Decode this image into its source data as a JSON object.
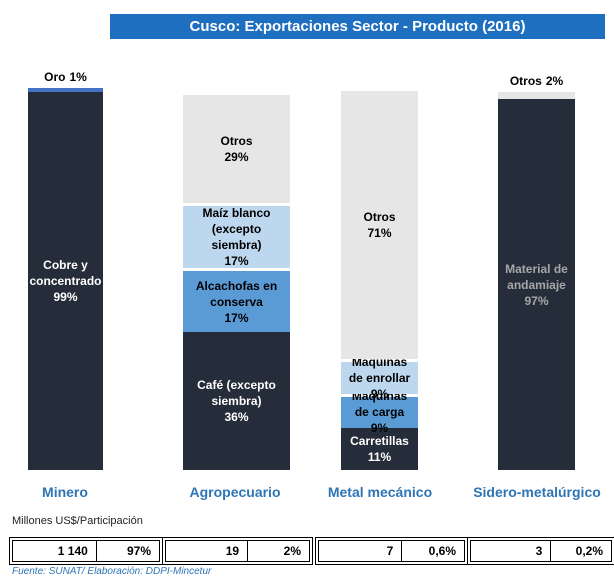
{
  "chart_data": {
    "type": "stacked-bar",
    "title": "Cusco: Exportaciones Sector - Producto (2016)",
    "ylim": [
      0,
      100
    ],
    "categories": [
      "Minero",
      "Agropecuario",
      "Metal mecánico",
      "Sidero-metalúrgico"
    ],
    "bars": [
      {
        "segments": [
          {
            "name": "Cobre y concentrado",
            "value": 99,
            "value_label": "99%",
            "color": "#262d3a",
            "text": "#ffffff"
          },
          {
            "name": "Oro",
            "value": 1,
            "value_label": "1%",
            "color": "#4472c4",
            "text": "#000000"
          }
        ]
      },
      {
        "segments": [
          {
            "name": "Café (excepto siembra)",
            "value": 36,
            "value_label": "36%",
            "color": "#262d3a",
            "text": "#ffffff"
          },
          {
            "name": "Alcachofas en conserva",
            "value": 17,
            "value_label": "17%",
            "color": "#5b9bd5",
            "text": "#000000"
          },
          {
            "name": "Maíz blanco (excepto siembra)",
            "value": 17,
            "value_label": "17%",
            "color": "#bdd7ee",
            "text": "#000000"
          },
          {
            "name": "Otros",
            "value": 29,
            "value_label": "29%",
            "color": "#e6e6e6",
            "text": "#000000"
          }
        ]
      },
      {
        "segments": [
          {
            "name": "Carretillas",
            "value": 11,
            "value_label": "11%",
            "color": "#262d3a",
            "text": "#ffffff"
          },
          {
            "name": "Máquinas de carga",
            "value": 9,
            "value_label": "9%",
            "color": "#5b9bd5",
            "text": "#000000"
          },
          {
            "name": "Máquinas de enrollar",
            "value": 9,
            "value_label": "9%",
            "color": "#bdd7ee",
            "text": "#000000"
          },
          {
            "name": "Otros",
            "value": 71,
            "value_label": "71%",
            "color": "#e6e6e6",
            "text": "#000000"
          }
        ]
      },
      {
        "segments": [
          {
            "name": "Material de andamiaje",
            "value": 97,
            "value_label": "97%",
            "color": "#262d3a",
            "text": "#a6a6a6"
          },
          {
            "name": "Otros",
            "value": 2,
            "value_label": "2%",
            "color": "#e6e6e6",
            "text": "#000000"
          }
        ]
      }
    ],
    "unit_note": "Millones US$/Participación",
    "table": [
      [
        "1 140",
        "97%"
      ],
      [
        "19",
        "2%"
      ],
      [
        "7",
        "0,6%"
      ],
      [
        "3",
        "0,2%"
      ]
    ],
    "source": "Fuente: SUNAT/ Elaboración: DDPI-Mincetur"
  }
}
